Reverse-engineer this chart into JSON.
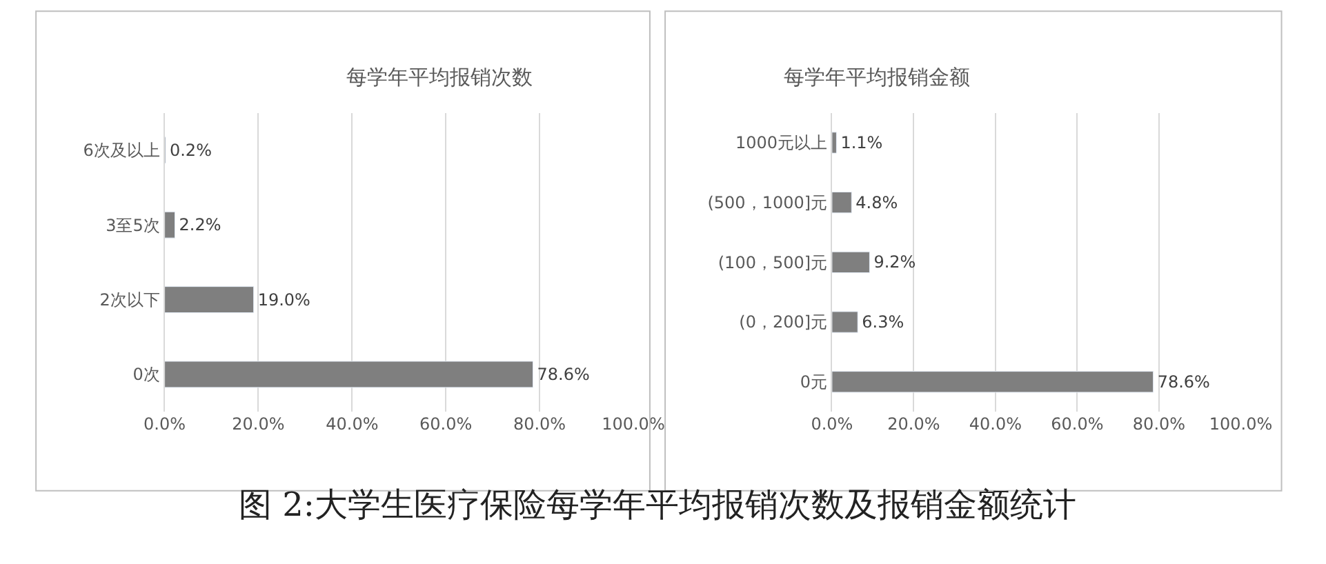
{
  "chart_data": [
    {
      "type": "bar",
      "orientation": "horizontal",
      "title": "每学年平均报销次数",
      "categories": [
        "6次及以上",
        "3至5次",
        "2次以下",
        "0次"
      ],
      "values": [
        0.2,
        2.2,
        19.0,
        78.6
      ],
      "value_labels": [
        "0.2%",
        "2.2%",
        "19.0%",
        "78.6%"
      ],
      "color": "#7f7f7f",
      "xlim": [
        0,
        100
      ],
      "xticks": [
        {
          "value": 0,
          "label": "0.0%"
        },
        {
          "value": 20,
          "label": "20.0%"
        },
        {
          "value": 40,
          "label": "40.0%"
        },
        {
          "value": 60,
          "label": "60.0%"
        },
        {
          "value": 80,
          "label": "80.0%"
        },
        {
          "value": 100,
          "label": "100.0%"
        }
      ],
      "grid": "x"
    },
    {
      "type": "bar",
      "orientation": "horizontal",
      "title": "每学年平均报销金额",
      "categories": [
        "1000元以上",
        "(500，1000]元",
        "(100，500]元",
        "(0，200]元",
        "0元"
      ],
      "values": [
        1.1,
        4.8,
        9.2,
        6.3,
        78.6
      ],
      "value_labels": [
        "1.1%",
        "4.8%",
        "9.2%",
        "6.3%",
        "78.6%"
      ],
      "color": "#7f7f7f",
      "xlim": [
        0,
        100
      ],
      "xticks": [
        {
          "value": 0,
          "label": "0.0%"
        },
        {
          "value": 20,
          "label": "20.0%"
        },
        {
          "value": 40,
          "label": "40.0%"
        },
        {
          "value": 60,
          "label": "60.0%"
        },
        {
          "value": 80,
          "label": "80.0%"
        },
        {
          "value": 100,
          "label": "100.0%"
        }
      ],
      "grid": "x",
      "annotations": [
        "图 2:大学生医疗保险每学年平均报销次数及报销金额统计"
      ]
    }
  ]
}
